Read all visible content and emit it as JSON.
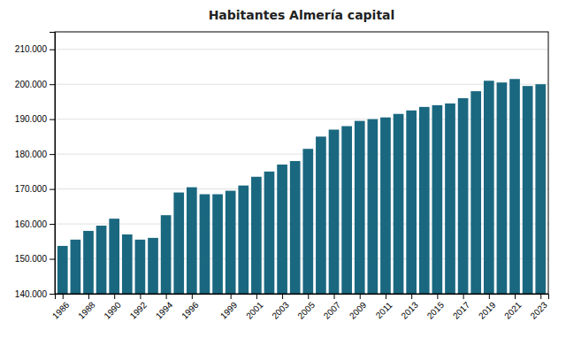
{
  "chart_data": {
    "type": "bar",
    "title": "Habitantes Almería capital",
    "color": "#1a6880",
    "x": [
      1986,
      1987,
      1988,
      1989,
      1990,
      1991,
      1992,
      1993,
      1994,
      1995,
      1996,
      1997,
      1998,
      1999,
      2000,
      2001,
      2002,
      2003,
      2004,
      2005,
      2006,
      2007,
      2008,
      2009,
      2010,
      2011,
      2012,
      2013,
      2014,
      2015,
      2016,
      2017,
      2018,
      2019,
      2020,
      2021,
      2022,
      2023
    ],
    "values": [
      153700,
      155500,
      158000,
      159500,
      161500,
      157000,
      155500,
      156000,
      162500,
      169000,
      170500,
      168500,
      168500,
      169500,
      171000,
      173500,
      175000,
      177000,
      178000,
      181500,
      185000,
      187000,
      188000,
      189500,
      190000,
      190500,
      191500,
      192500,
      193500,
      194000,
      194500,
      196000,
      198000,
      201000,
      200500,
      201500,
      199500,
      200000
    ],
    "xlim": [
      1985.4,
      2023.6
    ],
    "xticks": [
      1986,
      1988,
      1990,
      1992,
      1994,
      1996,
      1999,
      2001,
      2003,
      2005,
      2007,
      2009,
      2011,
      2013,
      2015,
      2017,
      2019,
      2021,
      2023
    ],
    "ylim": [
      140000,
      215000
    ],
    "yticks": [
      {
        "value": 140000,
        "label": "140.000"
      },
      {
        "value": 150000,
        "label": "150.000"
      },
      {
        "value": 160000,
        "label": "160.000"
      },
      {
        "value": 170000,
        "label": "170.000"
      },
      {
        "value": 180000,
        "label": "180.000"
      },
      {
        "value": 190000,
        "label": "190.000"
      },
      {
        "value": 200000,
        "label": "200.000"
      },
      {
        "value": 210000,
        "label": "210.000"
      }
    ],
    "grid": true
  }
}
